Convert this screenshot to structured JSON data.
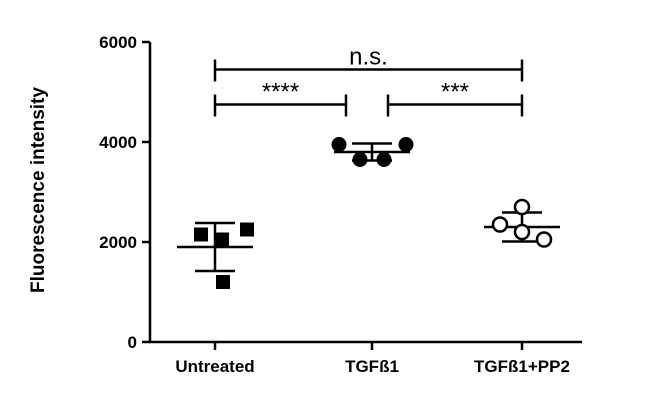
{
  "chart_data": {
    "type": "scatter",
    "title": "",
    "xlabel": "",
    "ylabel": "Fluorescence intensity",
    "ylim": [
      0,
      6000
    ],
    "yticks": [
      0,
      2000,
      4000,
      6000
    ],
    "grid": false,
    "categories": [
      "Untreated",
      "TGFß1",
      "TGFß1+PP2"
    ],
    "groups": [
      {
        "category": "Untreated",
        "marker": "square-filled",
        "points": [
          2150,
          2050,
          2250,
          1200
        ],
        "mean": 1900,
        "error": 480
      },
      {
        "category": "TGFß1",
        "marker": "circle-filled",
        "points": [
          3950,
          3650,
          3650,
          3950
        ],
        "mean": 3800,
        "error": 170
      },
      {
        "category": "TGFß1+PP2",
        "marker": "circle-open",
        "points": [
          2350,
          2700,
          2050,
          2200
        ],
        "mean": 2300,
        "error": 290
      }
    ],
    "annotations": [
      {
        "from": "Untreated",
        "to": "TGFß1+PP2",
        "y": 5450,
        "label": "n.s."
      },
      {
        "from": "Untreated",
        "to": "TGFß1",
        "y": 4750,
        "label": "****"
      },
      {
        "from": "TGFß1",
        "to": "TGFß1+PP2",
        "y": 4750,
        "label": "***"
      }
    ]
  }
}
